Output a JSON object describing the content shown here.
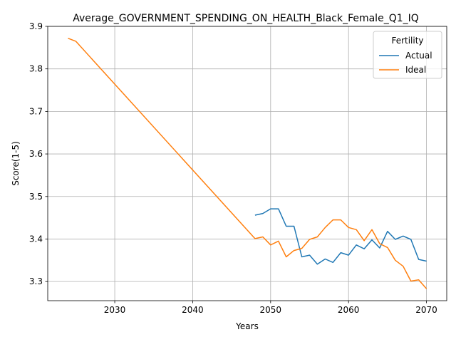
{
  "chart_data": {
    "type": "line",
    "title": "Average_GOVERNMENT_SPENDING_ON_HEALTH_Black_Female_Q1_IQ",
    "xlabel": "Years",
    "ylabel": "Score(1-5)",
    "xlim": [
      2021.4,
      2072.6
    ],
    "ylim": [
      3.255,
      3.9
    ],
    "xticks": [
      2030,
      2040,
      2050,
      2060,
      2070
    ],
    "yticks": [
      3.3,
      3.4,
      3.5,
      3.6,
      3.7,
      3.8,
      3.9
    ],
    "xtick_labels": [
      "2030",
      "2040",
      "2050",
      "2060",
      "2070"
    ],
    "ytick_labels": [
      "3.3",
      "3.4",
      "3.5",
      "3.6",
      "3.7",
      "3.8",
      "3.9"
    ],
    "grid": true,
    "legend": {
      "title": "Fertility",
      "position": "top-right"
    },
    "series": [
      {
        "name": "Actual",
        "color": "#1f77b4",
        "x": [
          2048,
          2049,
          2050,
          2051,
          2052,
          2053,
          2054,
          2055,
          2056,
          2057,
          2058,
          2059,
          2060,
          2061,
          2062,
          2063,
          2064,
          2065,
          2066,
          2067,
          2068,
          2069,
          2070
        ],
        "y": [
          3.456,
          3.46,
          3.471,
          3.471,
          3.43,
          3.43,
          3.358,
          3.362,
          3.341,
          3.353,
          3.345,
          3.368,
          3.362,
          3.386,
          3.377,
          3.398,
          3.379,
          3.418,
          3.399,
          3.407,
          3.399,
          3.352,
          3.348
        ]
      },
      {
        "name": "Ideal",
        "color": "#ff7f0e",
        "x": [
          2024,
          2025,
          2048,
          2049,
          2050,
          2051,
          2052,
          2053,
          2054,
          2055,
          2056,
          2057,
          2058,
          2059,
          2060,
          2061,
          2062,
          2063,
          2064,
          2065,
          2066,
          2067,
          2068,
          2069,
          2070
        ],
        "y": [
          3.872,
          3.865,
          3.401,
          3.405,
          3.386,
          3.395,
          3.358,
          3.373,
          3.378,
          3.399,
          3.405,
          3.427,
          3.445,
          3.445,
          3.427,
          3.422,
          3.396,
          3.422,
          3.389,
          3.38,
          3.35,
          3.336,
          3.301,
          3.304,
          3.283
        ]
      }
    ]
  }
}
